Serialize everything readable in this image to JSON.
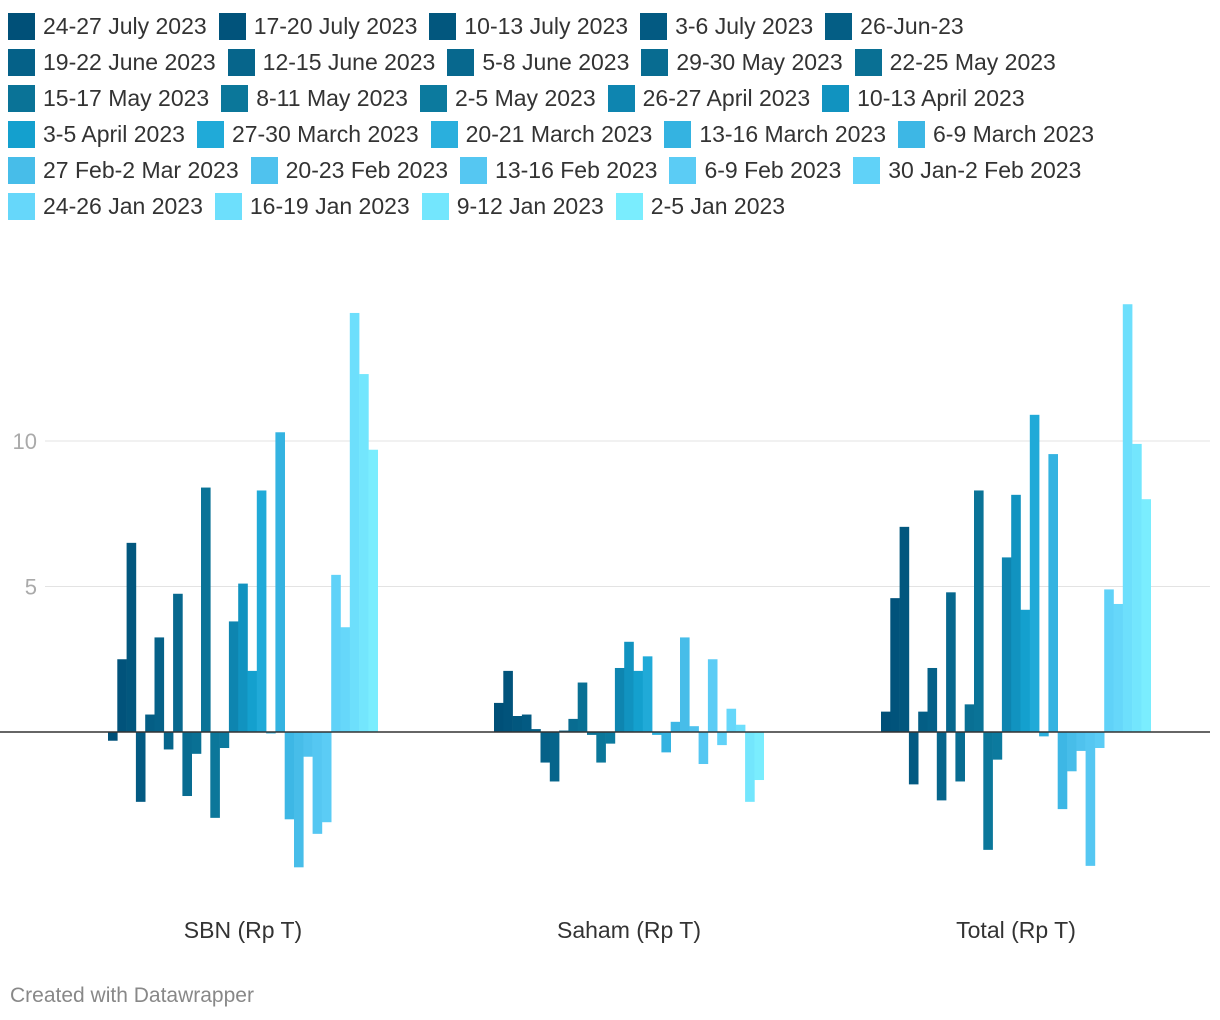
{
  "chart_data": {
    "type": "bar",
    "title": "",
    "xlabel": "",
    "ylabel": "",
    "ylim": [
      -6,
      15
    ],
    "yticks": [
      5,
      10
    ],
    "categories": [
      "SBN (Rp T)",
      "Saham (Rp T)",
      "Total (Rp T)"
    ],
    "series": [
      {
        "name": "24-27 July 2023",
        "color": "#005078",
        "values": [
          -0.3,
          1.0,
          0.7
        ]
      },
      {
        "name": "17-20 July 2023",
        "color": "#01537b",
        "values": [
          2.5,
          2.1,
          4.6
        ]
      },
      {
        "name": "10-13 July 2023",
        "color": "#02577e",
        "values": [
          6.5,
          0.55,
          7.05
        ]
      },
      {
        "name": "3-6 July 2023",
        "color": "#035a82",
        "values": [
          -2.4,
          0.6,
          -1.8
        ]
      },
      {
        "name": "26-Jun-23",
        "color": "#045e85",
        "values": [
          0.6,
          0.1,
          0.7
        ]
      },
      {
        "name": "19-22 June 2023",
        "color": "#056188",
        "values": [
          3.25,
          -1.05,
          2.2
        ]
      },
      {
        "name": "12-15 June 2023",
        "color": "#06658b",
        "values": [
          -0.6,
          -1.7,
          -2.35
        ]
      },
      {
        "name": "5-8 June 2023",
        "color": "#07688e",
        "values": [
          4.75,
          0.05,
          4.8
        ]
      },
      {
        "name": "29-30 May 2023",
        "color": "#086c91",
        "values": [
          -2.2,
          0.45,
          -1.7
        ]
      },
      {
        "name": "22-25 May 2023",
        "color": "#097094",
        "values": [
          -0.75,
          1.7,
          0.95
        ]
      },
      {
        "name": "15-17 May 2023",
        "color": "#0a7397",
        "values": [
          8.4,
          -0.1,
          8.3
        ]
      },
      {
        "name": "8-11 May 2023",
        "color": "#0b779a",
        "values": [
          -2.95,
          -1.05,
          -4.05
        ]
      },
      {
        "name": "2-5 May 2023",
        "color": "#0c7a9e",
        "values": [
          -0.55,
          -0.4,
          -0.95
        ]
      },
      {
        "name": "26-27 April 2023",
        "color": "#0e85b0",
        "values": [
          3.8,
          2.2,
          6.0
        ]
      },
      {
        "name": "10-13 April 2023",
        "color": "#1193c0",
        "values": [
          5.1,
          3.1,
          8.15
        ]
      },
      {
        "name": "3-5 April 2023",
        "color": "#14a0ce",
        "values": [
          2.1,
          2.1,
          4.2
        ]
      },
      {
        "name": "27-30 March 2023",
        "color": "#20aad8",
        "values": [
          8.3,
          2.6,
          10.9
        ]
      },
      {
        "name": "20-21 March 2023",
        "color": "#2aafdd",
        "values": [
          -0.05,
          -0.1,
          -0.15
        ]
      },
      {
        "name": "13-16 March 2023",
        "color": "#34b3e1",
        "values": [
          10.3,
          -0.7,
          9.55
        ]
      },
      {
        "name": "6-9 March 2023",
        "color": "#3db7e5",
        "values": [
          -3.0,
          0.35,
          -2.65
        ]
      },
      {
        "name": "27 Feb-2 Mar 2023",
        "color": "#47bde9",
        "values": [
          -4.65,
          3.25,
          -1.35
        ]
      },
      {
        "name": "20-23 Feb 2023",
        "color": "#4fc2ee",
        "values": [
          -0.85,
          0.2,
          -0.65
        ]
      },
      {
        "name": "13-16 Feb 2023",
        "color": "#55c7f2",
        "values": [
          -3.5,
          -1.1,
          -4.6
        ]
      },
      {
        "name": "6-9 Feb 2023",
        "color": "#5bccf5",
        "values": [
          -3.1,
          2.5,
          -0.55
        ]
      },
      {
        "name": "30 Jan-2 Feb 2023",
        "color": "#60d2f8",
        "values": [
          5.4,
          -0.45,
          4.9
        ]
      },
      {
        "name": "24-26 Jan 2023",
        "color": "#66d7fa",
        "values": [
          3.6,
          0.8,
          4.4
        ]
      },
      {
        "name": "16-19 Jan 2023",
        "color": "#6ddffc",
        "values": [
          14.4,
          0.25,
          14.7
        ]
      },
      {
        "name": "9-12 Jan 2023",
        "color": "#73e6fd",
        "values": [
          12.3,
          -2.4,
          9.9
        ]
      },
      {
        "name": "2-5 Jan 2023",
        "color": "#7aedfe",
        "values": [
          9.7,
          -1.65,
          8.0
        ]
      }
    ]
  },
  "footer": {
    "credit": "Created with Datawrapper"
  }
}
